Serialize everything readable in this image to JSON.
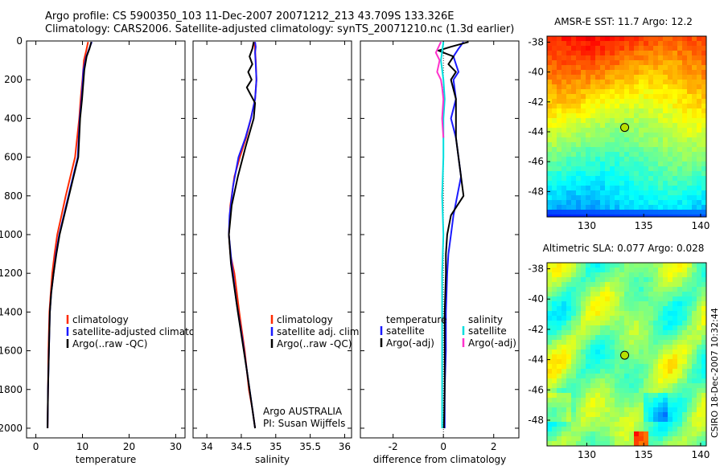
{
  "header": {
    "line1": "Argo profile: CS 5900350_103 11-Dec-2007 20071212_213 43.709S 133.326E",
    "line2": "Climatology: CARS2006. Satellite-adjusted climatology: synTS_20071210.nc (1.3d earlier)"
  },
  "side_text": "CSIRO 18-Dec-2007 10:32:44",
  "colors": {
    "climatology": "#ff2a00",
    "satellite": "#1a1aff",
    "argo": "#000000",
    "sat_diff": "#00dede",
    "argo_adj": "#ff33cc"
  },
  "chart_data": [
    {
      "type": "line",
      "id": "temperature-profile",
      "xlabel": "temperature",
      "ylabel": "",
      "xlim": [
        -2,
        32
      ],
      "ylim": [
        2050,
        0
      ],
      "y_reversed": true,
      "xticks": [
        0,
        10,
        20,
        30
      ],
      "xtick_labels": [
        "0",
        "10",
        "20",
        "30"
      ],
      "yticks": [
        0,
        200,
        400,
        600,
        800,
        1000,
        1200,
        1400,
        1600,
        1800,
        2000
      ],
      "ytick_labels": [
        "0",
        "200",
        "400",
        "600",
        "800",
        "1000",
        "1200",
        "1400",
        "1600",
        "1800",
        "2000"
      ],
      "legend": [
        "climatology",
        "satellite-adjusted climatology",
        "Argo(..raw -QC)"
      ],
      "series": [
        {
          "name": "climatology",
          "color_key": "climatology",
          "x": [
            11.2,
            10.8,
            10.3,
            10.0,
            9.6,
            9.3,
            8.4,
            7.4,
            6.4,
            5.5,
            4.6,
            4.0,
            3.5,
            3.2,
            2.9,
            2.7,
            2.6,
            2.5
          ],
          "y": [
            5,
            50,
            100,
            200,
            300,
            400,
            600,
            700,
            800,
            900,
            1000,
            1100,
            1200,
            1300,
            1400,
            1600,
            1800,
            2000
          ]
        },
        {
          "name": "satellite-adjusted climatology",
          "color_key": "satellite",
          "x": [
            12.0,
            11.6,
            10.8,
            10.2,
            9.8,
            9.4,
            9.0,
            8.0,
            7.0,
            6.0,
            5.0,
            4.3,
            3.8,
            3.3,
            3.0,
            2.8,
            2.6,
            2.5
          ],
          "y": [
            5,
            30,
            80,
            150,
            300,
            400,
            600,
            700,
            800,
            900,
            1000,
            1100,
            1200,
            1300,
            1400,
            1600,
            1800,
            2000
          ]
        },
        {
          "name": "Argo(..raw -QC)",
          "color_key": "argo",
          "x": [
            11.9,
            11.5,
            10.9,
            10.4,
            9.9,
            9.5,
            9.1,
            8.1,
            7.1,
            6.1,
            5.1,
            4.4,
            3.8,
            3.3,
            3.0,
            2.8,
            2.6,
            2.5
          ],
          "y": [
            5,
            40,
            80,
            150,
            300,
            400,
            600,
            700,
            800,
            900,
            1000,
            1100,
            1200,
            1300,
            1400,
            1600,
            1800,
            2000
          ]
        }
      ]
    },
    {
      "type": "line",
      "id": "salinity-profile",
      "xlabel": "salinity",
      "ylabel": "",
      "xlim": [
        33.8,
        36.1
      ],
      "ylim": [
        2050,
        0
      ],
      "y_reversed": true,
      "xticks": [
        34,
        34.5,
        35,
        35.5,
        36
      ],
      "xtick_labels": [
        "34",
        "34.5",
        "35",
        "35.5",
        "36"
      ],
      "yticks": [
        0,
        200,
        400,
        600,
        800,
        1000,
        1200,
        1400,
        1600,
        1800,
        2000
      ],
      "legend": [
        "climatology",
        "satellite adj. clim.",
        "Argo(..raw -QC)"
      ],
      "annotation": [
        "Argo AUSTRALIA",
        "PI: Susan Wijffels"
      ],
      "series": [
        {
          "name": "climatology",
          "color_key": "climatology",
          "x": [
            34.69,
            34.7,
            34.71,
            34.72,
            34.7,
            34.64,
            34.57,
            34.48,
            34.4,
            34.34,
            34.32,
            34.34,
            34.4,
            34.47,
            34.55,
            34.61,
            34.66,
            34.7
          ],
          "y": [
            5,
            50,
            100,
            200,
            300,
            400,
            500,
            600,
            700,
            850,
            1000,
            1100,
            1200,
            1400,
            1600,
            1800,
            1900,
            2000
          ]
        },
        {
          "name": "satellite adj. clim.",
          "color_key": "satellite",
          "x": [
            34.7,
            34.71,
            34.7,
            34.71,
            34.72,
            34.7,
            34.64,
            34.56,
            34.46,
            34.38,
            34.33,
            34.32,
            34.36,
            34.43,
            34.52,
            34.6,
            34.66,
            34.7
          ],
          "y": [
            5,
            30,
            60,
            120,
            200,
            300,
            400,
            500,
            600,
            750,
            900,
            1000,
            1150,
            1350,
            1550,
            1750,
            1900,
            2000
          ]
        },
        {
          "name": "Argo(..raw -QC)",
          "color_key": "argo",
          "x": [
            34.68,
            34.66,
            34.62,
            34.66,
            34.6,
            34.65,
            34.58,
            34.64,
            34.7,
            34.68,
            34.56,
            34.45,
            34.36,
            34.32,
            34.35,
            34.45,
            34.58,
            34.7
          ],
          "y": [
            5,
            40,
            80,
            120,
            160,
            200,
            240,
            280,
            320,
            400,
            550,
            700,
            850,
            1000,
            1150,
            1400,
            1700,
            2000
          ]
        }
      ]
    },
    {
      "type": "line",
      "id": "difference-profile",
      "xlabel": "difference from climatology",
      "ylabel": "",
      "xlim": [
        -3.3,
        3.0
      ],
      "ylim": [
        2050,
        0
      ],
      "y_reversed": true,
      "xticks": [
        -2,
        0,
        2
      ],
      "xtick_labels": [
        "-2",
        "0",
        "2"
      ],
      "yticks": [
        0,
        200,
        400,
        600,
        800,
        1000,
        1200,
        1400,
        1600,
        1800,
        2000
      ],
      "legend_temperature": {
        "title": "temperature",
        "items": [
          "satellite",
          "Argo(-adj)"
        ]
      },
      "legend_salinity": {
        "title": "salinity",
        "items": [
          "satellite",
          "Argo(-adj)"
        ]
      },
      "series": [
        {
          "name": "temperature satellite",
          "color_key": "satellite",
          "x": [
            0.8,
            0.6,
            0.4,
            0.5,
            0.6,
            0.4,
            0.5,
            0.3,
            0.5,
            0.7,
            0.4,
            0.3,
            0.2,
            0.15,
            0.1,
            0.1,
            0.05,
            0.05
          ],
          "y": [
            5,
            40,
            80,
            120,
            160,
            200,
            300,
            400,
            500,
            700,
            900,
            1000,
            1100,
            1200,
            1400,
            1600,
            1800,
            2000
          ]
        },
        {
          "name": "temperature Argo(-adj)",
          "color_key": "argo",
          "x": [
            1.0,
            0.3,
            -0.2,
            0.4,
            0.2,
            0.5,
            0.3,
            0.5,
            0.5,
            0.8,
            0.3,
            0.15,
            0.1,
            0.1,
            0.05,
            0.05,
            0.05,
            0.02
          ],
          "y": [
            5,
            30,
            50,
            80,
            120,
            160,
            200,
            300,
            500,
            800,
            900,
            1000,
            1100,
            1200,
            1400,
            1600,
            1800,
            2000
          ]
        },
        {
          "name": "salinity satellite",
          "color_key": "sat_diff",
          "x": [
            0.0,
            -0.1,
            0.0,
            0.05,
            0.0,
            0.0,
            -0.05,
            0.0,
            -0.05,
            -0.05,
            -0.05,
            -0.05,
            -0.05,
            -0.05
          ],
          "y": [
            5,
            100,
            200,
            300,
            400,
            600,
            800,
            1000,
            1200,
            1400,
            1600,
            1800,
            1900,
            2000
          ]
        },
        {
          "name": "salinity Argo(-adj)",
          "color_key": "argo_adj",
          "x": [
            -0.1,
            -0.3,
            -0.15,
            -0.25,
            -0.1,
            -0.05,
            0.0,
            -0.05,
            0.0
          ],
          "y": [
            5,
            60,
            100,
            160,
            200,
            240,
            300,
            400,
            500
          ]
        }
      ]
    },
    {
      "type": "heatmap",
      "id": "amsre-sst-map",
      "title": "AMSR-E SST: 11.7 Argo: 12.2",
      "xlim": [
        126.5,
        140.5
      ],
      "ylim": [
        -49.7,
        -37.6
      ],
      "xticks": [
        130,
        135,
        140
      ],
      "xtick_labels": [
        "130",
        "135",
        "140"
      ],
      "yticks": [
        -38,
        -40,
        -42,
        -44,
        -46,
        -48
      ],
      "ytick_labels": [
        "-38",
        "-40",
        "-42",
        "-44",
        "-46",
        "-48"
      ],
      "profile_location": {
        "lon": 133.326,
        "lat": -43.709
      }
    },
    {
      "type": "heatmap",
      "id": "altimetric-sla-map",
      "title": "Altimetric SLA: 0.077 Argo: 0.028",
      "xlim": [
        126.5,
        140.5
      ],
      "ylim": [
        -49.7,
        -37.6
      ],
      "xticks": [
        130,
        135,
        140
      ],
      "xtick_labels": [
        "130",
        "135",
        "140"
      ],
      "yticks": [
        -38,
        -40,
        -42,
        -44,
        -46,
        -48
      ],
      "ytick_labels": [
        "-38",
        "-40",
        "-42",
        "-44",
        "-46",
        "-48"
      ],
      "profile_location": {
        "lon": 133.326,
        "lat": -43.709
      }
    }
  ]
}
